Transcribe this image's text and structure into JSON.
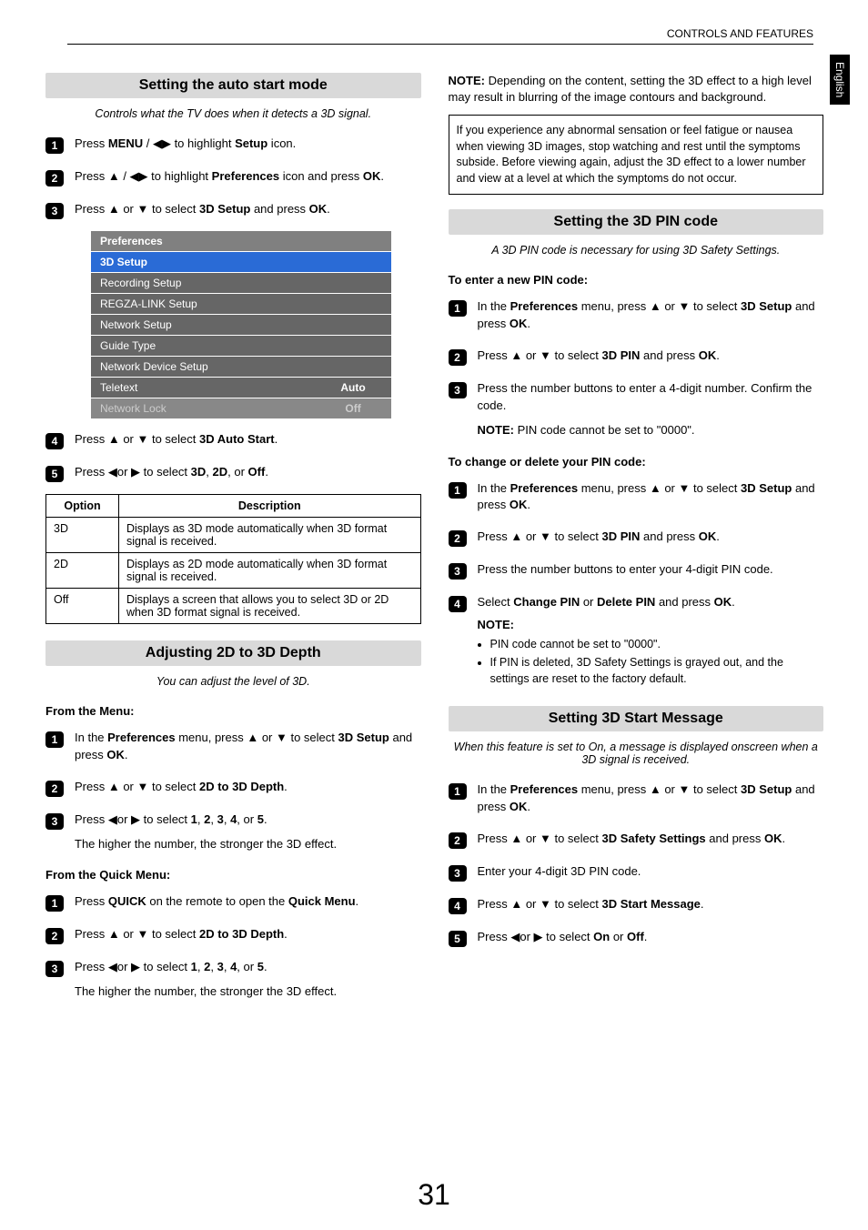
{
  "header": "CONTROLS AND FEATURES",
  "side_tab": "English",
  "page_number": "31",
  "left": {
    "sec1": {
      "title": "Setting the auto start mode",
      "sub": "Controls what the TV does when it detects a 3D signal.",
      "steps": {
        "s1": "Press <b>MENU</b> / ◀▶ to highlight <b>Setup</b> icon.",
        "s2": "Press ▲ / ◀▶ to highlight <b>Preferences</b> icon and press <b>OK</b>.",
        "s3": "Press ▲ or ▼ to select <b>3D Setup</b> and press <b>OK</b>.",
        "s4": "Press ▲ or ▼ to select <b>3D Auto Start</b>.",
        "s5": "Press ◀or ▶ to select <b>3D</b>, <b>2D</b>, or <b>Off</b>."
      },
      "menu": {
        "header": "Preferences",
        "rows": [
          {
            "label": "3D Setup",
            "value": "",
            "sel": true
          },
          {
            "label": "Recording Setup",
            "value": ""
          },
          {
            "label": "REGZA-LINK Setup",
            "value": ""
          },
          {
            "label": "Network Setup",
            "value": ""
          },
          {
            "label": "Guide Type",
            "value": ""
          },
          {
            "label": "Network Device Setup",
            "value": ""
          },
          {
            "label": "Teletext",
            "value": "Auto"
          },
          {
            "label": "Network Lock",
            "value": "Off",
            "dim": true
          }
        ]
      },
      "opt_table": {
        "head1": "Option",
        "head2": "Description",
        "rows": [
          {
            "o": "3D",
            "d": "Displays as 3D mode automatically when 3D format signal is received."
          },
          {
            "o": "2D",
            "d": "Displays as 2D mode automatically when 3D format signal is received."
          },
          {
            "o": "Off",
            "d": "Displays a screen that allows you to select 3D or 2D when 3D format signal is received."
          }
        ]
      }
    },
    "sec2": {
      "title": "Adjusting 2D to 3D Depth",
      "sub": "You can adjust the level of 3D.",
      "h1": "From the Menu:",
      "steps1": {
        "s1": "In the <b>Preferences</b> menu, press ▲ or ▼ to select <b>3D Setup</b> and press <b>OK</b>.",
        "s2": "Press ▲ or ▼ to select <b>2D to 3D Depth</b>.",
        "s3": "Press ◀or ▶ to select <b>1</b>, <b>2</b>, <b>3</b>, <b>4</b>, or <b>5</b>."
      },
      "tail1": "The higher the number, the stronger the 3D effect.",
      "h2": "From the Quick Menu:",
      "steps2": {
        "s1": "Press <b>QUICK</b> on the remote to open the <b>Quick Menu</b>.",
        "s2": "Press ▲ or ▼ to select <b>2D to 3D Depth</b>.",
        "s3": "Press ◀or ▶ to select <b>1</b>, <b>2</b>, <b>3</b>, <b>4</b>, or <b>5</b>."
      },
      "tail2": "The higher the number, the stronger the 3D effect."
    }
  },
  "right": {
    "note_top": "<b>NOTE:</b> Depending on the content, setting the 3D effect to a high level may result in blurring of the image contours and background.",
    "warn_box": "If you experience any abnormal sensation or feel fatigue or nausea when viewing 3D images, stop watching and rest until the symptoms subside. Before viewing again, adjust the 3D effect to a lower number and view at a level at which the symptoms do not occur.",
    "sec3": {
      "title": "Setting the 3D PIN code",
      "sub": "A 3D PIN code is necessary for using 3D Safety Settings.",
      "h1": "To enter a new PIN code:",
      "steps1": {
        "s1": "In the <b>Preferences</b> menu, press ▲ or ▼ to select <b>3D Setup</b> and press <b>OK</b>.",
        "s2": "Press ▲ or ▼ to select <b>3D PIN</b> and press <b>OK</b>.",
        "s3": "Press the number buttons to enter a 4-digit number. Confirm the code."
      },
      "note1": "<b>NOTE:</b> PIN code cannot be set to \"0000\".",
      "h2": "To change or delete your PIN code:",
      "steps2": {
        "s1": "In the <b>Preferences</b> menu, press ▲ or ▼ to select <b>3D Setup</b> and press <b>OK</b>.",
        "s2": "Press ▲ or ▼ to select <b>3D PIN</b> and press <b>OK</b>.",
        "s3": "Press the number buttons to enter your 4-digit PIN code.",
        "s4": "Select <b>Change PIN</b> or <b>Delete PIN</b> and press <b>OK</b>."
      },
      "note2_head": "NOTE:",
      "note2_b1": "PIN code cannot be set to \"0000\".",
      "note2_b2": "If PIN is deleted, 3D Safety Settings is grayed out, and the settings are reset to the factory default."
    },
    "sec4": {
      "title": "Setting 3D Start Message",
      "sub": "When this feature is set to On, a message is displayed onscreen when a 3D signal is received.",
      "steps": {
        "s1": "In the <b>Preferences</b> menu, press ▲ or ▼ to select <b>3D Setup</b> and press <b>OK</b>.",
        "s2": "Press ▲ or ▼ to select <b>3D Safety Settings</b> and press <b>OK</b>.",
        "s3": "Enter your 4-digit 3D PIN code.",
        "s4": "Press ▲ or ▼ to select <b>3D Start Message</b>.",
        "s5": "Press ◀or ▶ to select <b>On</b> or <b>Off</b>."
      }
    }
  }
}
